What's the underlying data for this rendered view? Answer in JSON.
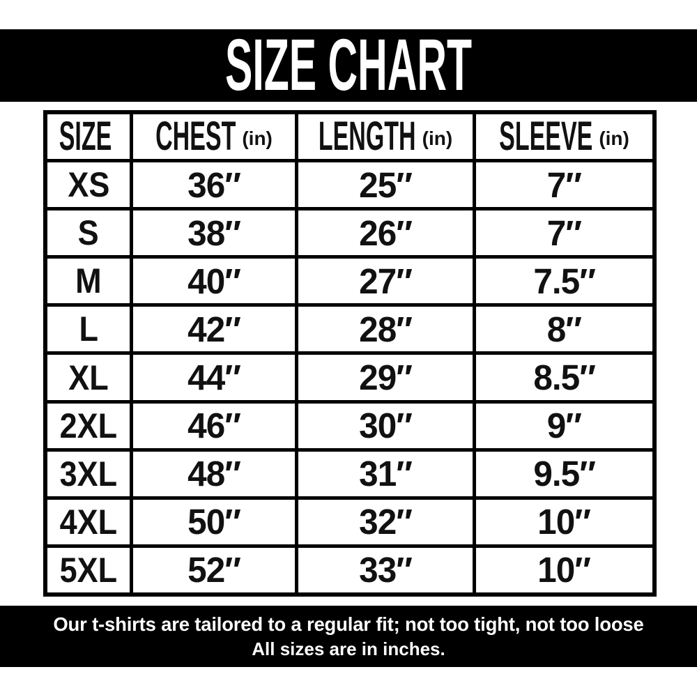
{
  "header": {
    "title": "SIZE CHART",
    "banner_color": "#000000",
    "text_color": "#ffffff"
  },
  "table": {
    "columns": [
      {
        "label": "SIZE",
        "unit": ""
      },
      {
        "label": "CHEST",
        "unit": "(in)"
      },
      {
        "label": "LENGTH",
        "unit": "(in)"
      },
      {
        "label": "SLEEVE",
        "unit": "(in)"
      }
    ],
    "rows": [
      {
        "size": "XS",
        "chest": "36″",
        "length": "25″",
        "sleeve": "7″"
      },
      {
        "size": "S",
        "chest": "38″",
        "length": "26″",
        "sleeve": "7″"
      },
      {
        "size": "M",
        "chest": "40″",
        "length": "27″",
        "sleeve": "7.5″"
      },
      {
        "size": "L",
        "chest": "42″",
        "length": "28″",
        "sleeve": "8″"
      },
      {
        "size": "XL",
        "chest": "44″",
        "length": "29″",
        "sleeve": "8.5″"
      },
      {
        "size": "2XL",
        "chest": "46″",
        "length": "30″",
        "sleeve": "9″"
      },
      {
        "size": "3XL",
        "chest": "48″",
        "length": "31″",
        "sleeve": "9.5″"
      },
      {
        "size": "4XL",
        "chest": "50″",
        "length": "32″",
        "sleeve": "10″"
      },
      {
        "size": "5XL",
        "chest": "52″",
        "length": "33″",
        "sleeve": "10″"
      }
    ],
    "border_color": "#000000",
    "cell_background": "#ffffff",
    "text_color": "#111111"
  },
  "footer": {
    "line1": "Our t-shirts are tailored to a regular fit; not too tight, not too loose",
    "line2": "All sizes are in inches.",
    "banner_color": "#000000",
    "text_color": "#ffffff"
  },
  "chart_data": {
    "type": "table",
    "title": "SIZE CHART",
    "columns": [
      "SIZE",
      "CHEST (in)",
      "LENGTH (in)",
      "SLEEVE (in)"
    ],
    "rows": [
      [
        "XS",
        36,
        25,
        7
      ],
      [
        "S",
        38,
        26,
        7
      ],
      [
        "M",
        40,
        27,
        7.5
      ],
      [
        "L",
        42,
        28,
        8
      ],
      [
        "XL",
        44,
        29,
        8.5
      ],
      [
        "2XL",
        46,
        30,
        9
      ],
      [
        "3XL",
        48,
        31,
        9.5
      ],
      [
        "4XL",
        50,
        32,
        10
      ],
      [
        "5XL",
        52,
        33,
        10
      ]
    ],
    "units": "inches",
    "notes": [
      "Our t-shirts are tailored to a regular fit; not too tight, not too loose",
      "All sizes are in inches."
    ]
  }
}
